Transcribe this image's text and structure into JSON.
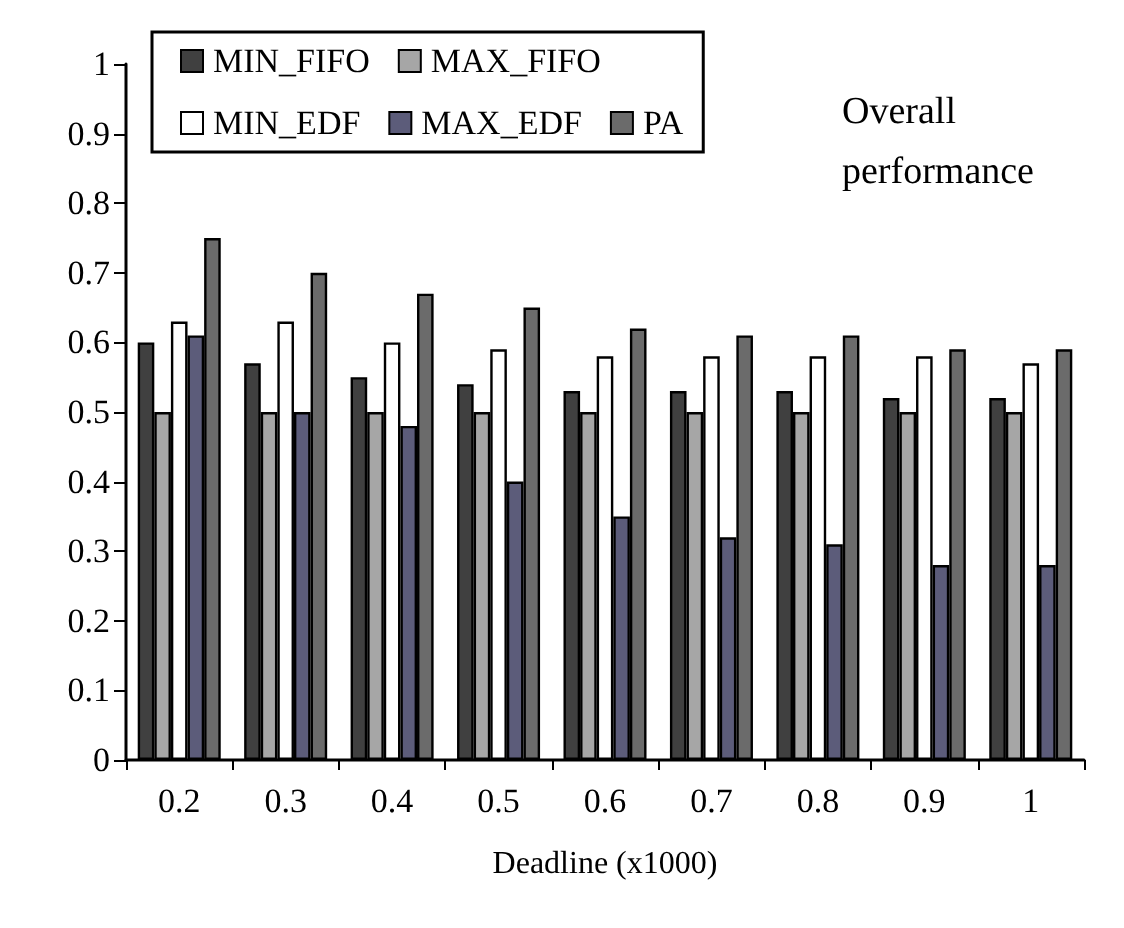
{
  "chart_data": {
    "type": "bar",
    "title": "Overall performance",
    "xlabel": "Deadline (x1000)",
    "categories": [
      "0.2",
      "0.3",
      "0.4",
      "0.5",
      "0.6",
      "0.7",
      "0.8",
      "0.9",
      "1"
    ],
    "series": [
      {
        "name": "MIN_FIFO",
        "color": "#404040",
        "values": [
          0.6,
          0.57,
          0.55,
          0.54,
          0.53,
          0.53,
          0.53,
          0.52,
          0.52
        ]
      },
      {
        "name": "MAX_FIFO",
        "color": "#a6a6a6",
        "values": [
          0.5,
          0.5,
          0.5,
          0.5,
          0.5,
          0.5,
          0.5,
          0.5,
          0.5
        ]
      },
      {
        "name": "MIN_EDF",
        "color": "#ffffff",
        "values": [
          0.63,
          0.63,
          0.6,
          0.59,
          0.58,
          0.58,
          0.58,
          0.58,
          0.57
        ]
      },
      {
        "name": "MAX_EDF",
        "color": "#5c5c7a",
        "values": [
          0.61,
          0.5,
          0.48,
          0.4,
          0.35,
          0.32,
          0.31,
          0.28,
          0.28
        ]
      },
      {
        "name": "PA",
        "color": "#6b6b6b",
        "values": [
          0.75,
          0.7,
          0.67,
          0.65,
          0.62,
          0.61,
          0.61,
          0.59,
          0.59
        ]
      }
    ],
    "ylim": [
      0,
      1
    ],
    "yticks": [
      0,
      0.1,
      0.2,
      0.3,
      0.4,
      0.5,
      0.6,
      0.7,
      0.8,
      0.9,
      1
    ],
    "grid": false,
    "legend": "top left"
  }
}
